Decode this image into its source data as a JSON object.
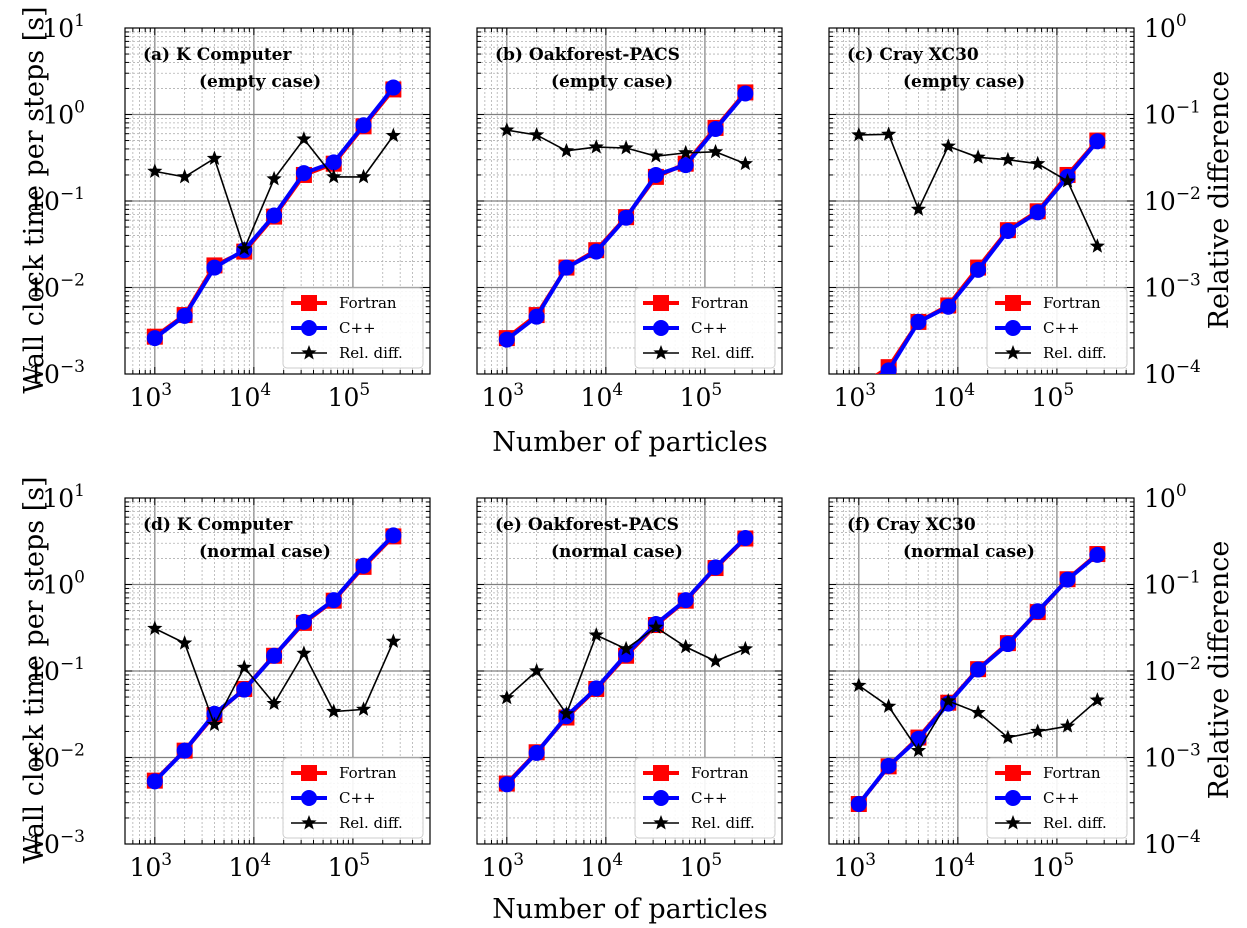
{
  "figure": {
    "ylabel_left": "Wall clock time per steps [s]",
    "ylabel_right": "Relative difference",
    "xlabel": "Number of particles"
  },
  "legend": {
    "entries": [
      "Fortran",
      "C++",
      "Rel. diff."
    ],
    "location": "lower-right"
  },
  "colors": {
    "fortran": "#ff0000",
    "cpp": "#0000ff",
    "reldiff": "#000000",
    "grid_major": "#808080",
    "grid_minor": "#b0b0b0"
  },
  "axes": {
    "x_ticks": [
      "10^3",
      "10^4",
      "10^5"
    ],
    "y_left_ticks": [
      "10^-3",
      "10^-2",
      "10^-1",
      "10^0",
      "10^1"
    ],
    "y_right_ticks": [
      "10^-4",
      "10^-3",
      "10^-2",
      "10^-1",
      "10^0"
    ]
  },
  "chart_data": [
    {
      "type": "line",
      "title": "(a) K Computer",
      "subtitle": "(empty case)",
      "xscale": "log",
      "yscale": "log",
      "y2scale": "log",
      "xlim": [
        500,
        600000
      ],
      "ylim": [
        0.001,
        10
      ],
      "y2lim": [
        0.0001,
        1
      ],
      "x": [
        1000,
        2000,
        4000,
        8000,
        16000,
        32000,
        64000,
        128000,
        256000
      ],
      "series": [
        {
          "name": "Fortran",
          "axis": "left",
          "values": [
            0.0027,
            0.0048,
            0.018,
            0.026,
            0.066,
            0.2,
            0.27,
            0.73,
            1.95
          ]
        },
        {
          "name": "C++",
          "axis": "left",
          "values": [
            0.0026,
            0.0047,
            0.017,
            0.027,
            0.068,
            0.21,
            0.28,
            0.75,
            2.05
          ]
        },
        {
          "name": "Rel. diff.",
          "axis": "right",
          "values": [
            0.022,
            0.019,
            0.031,
            0.0028,
            0.018,
            0.052,
            0.019,
            0.019,
            0.057
          ]
        }
      ]
    },
    {
      "type": "line",
      "title": "(b) Oakforest-PACS",
      "subtitle": "(empty case)",
      "xscale": "log",
      "yscale": "log",
      "y2scale": "log",
      "xlim": [
        500,
        600000
      ],
      "ylim": [
        0.001,
        10
      ],
      "y2lim": [
        0.0001,
        1
      ],
      "x": [
        1000,
        2000,
        4000,
        8000,
        16000,
        32000,
        64000,
        128000,
        256000
      ],
      "series": [
        {
          "name": "Fortran",
          "axis": "left",
          "values": [
            0.0026,
            0.0048,
            0.017,
            0.027,
            0.065,
            0.19,
            0.27,
            0.7,
            1.8
          ]
        },
        {
          "name": "C++",
          "axis": "left",
          "values": [
            0.0025,
            0.0046,
            0.017,
            0.026,
            0.064,
            0.2,
            0.26,
            0.68,
            1.75
          ]
        },
        {
          "name": "Rel. diff.",
          "axis": "right",
          "values": [
            0.066,
            0.058,
            0.038,
            0.042,
            0.041,
            0.033,
            0.036,
            0.037,
            0.027
          ]
        }
      ]
    },
    {
      "type": "line",
      "title": "(c) Cray XC30",
      "subtitle": "(empty case)",
      "xscale": "log",
      "yscale": "log",
      "y2scale": "log",
      "xlim": [
        500,
        600000
      ],
      "ylim": [
        0.001,
        10
      ],
      "y2lim": [
        0.0001,
        1
      ],
      "x": [
        1000,
        2000,
        4000,
        8000,
        16000,
        32000,
        64000,
        128000,
        256000
      ],
      "series": [
        {
          "name": "Fortran",
          "axis": "left",
          "values": [
            0.0007,
            0.0012,
            0.004,
            0.0062,
            0.017,
            0.046,
            0.076,
            0.2,
            0.5
          ]
        },
        {
          "name": "C++",
          "axis": "left",
          "values": [
            0.0007,
            0.0011,
            0.004,
            0.006,
            0.016,
            0.045,
            0.074,
            0.19,
            0.49
          ]
        },
        {
          "name": "Rel. diff.",
          "axis": "right",
          "values": [
            0.058,
            0.059,
            0.008,
            0.043,
            0.032,
            0.03,
            0.027,
            0.017,
            0.003
          ]
        }
      ]
    },
    {
      "type": "line",
      "title": "(d) K Computer",
      "subtitle": "(normal case)",
      "xscale": "log",
      "yscale": "log",
      "y2scale": "log",
      "xlim": [
        500,
        600000
      ],
      "ylim": [
        0.001,
        10
      ],
      "y2lim": [
        0.0001,
        1
      ],
      "x": [
        1000,
        2000,
        4000,
        8000,
        16000,
        32000,
        64000,
        128000,
        256000
      ],
      "series": [
        {
          "name": "Fortran",
          "axis": "left",
          "values": [
            0.0054,
            0.012,
            0.031,
            0.062,
            0.15,
            0.36,
            0.65,
            1.6,
            3.6
          ]
        },
        {
          "name": "C++",
          "axis": "left",
          "values": [
            0.0053,
            0.012,
            0.032,
            0.061,
            0.15,
            0.37,
            0.66,
            1.65,
            3.7
          ]
        },
        {
          "name": "Rel. diff.",
          "axis": "right",
          "values": [
            0.031,
            0.021,
            0.0024,
            0.011,
            0.0042,
            0.016,
            0.0034,
            0.0036,
            0.022
          ]
        }
      ]
    },
    {
      "type": "line",
      "title": "(e) Oakforest-PACS",
      "subtitle": "(normal case)",
      "xscale": "log",
      "yscale": "log",
      "y2scale": "log",
      "xlim": [
        500,
        600000
      ],
      "ylim": [
        0.001,
        10
      ],
      "y2lim": [
        0.0001,
        1
      ],
      "x": [
        1000,
        2000,
        4000,
        8000,
        16000,
        32000,
        64000,
        128000,
        256000
      ],
      "series": [
        {
          "name": "Fortran",
          "axis": "left",
          "values": [
            0.005,
            0.0115,
            0.029,
            0.062,
            0.15,
            0.34,
            0.65,
            1.55,
            3.4
          ]
        },
        {
          "name": "C++",
          "axis": "left",
          "values": [
            0.0049,
            0.0113,
            0.03,
            0.063,
            0.155,
            0.35,
            0.66,
            1.58,
            3.45
          ]
        },
        {
          "name": "Rel. diff.",
          "axis": "right",
          "values": [
            0.0049,
            0.01,
            0.0032,
            0.026,
            0.018,
            0.032,
            0.019,
            0.013,
            0.018
          ]
        }
      ]
    },
    {
      "type": "line",
      "title": "(f) Cray XC30",
      "subtitle": "(normal case)",
      "xscale": "log",
      "yscale": "log",
      "y2scale": "log",
      "xlim": [
        500,
        600000
      ],
      "ylim": [
        0.001,
        10
      ],
      "y2lim": [
        0.0001,
        1
      ],
      "x": [
        1000,
        2000,
        4000,
        8000,
        16000,
        32000,
        64000,
        128000,
        256000
      ],
      "series": [
        {
          "name": "Fortran",
          "axis": "left",
          "values": [
            0.0029,
            0.0079,
            0.017,
            0.043,
            0.105,
            0.21,
            0.48,
            1.15,
            2.25
          ]
        },
        {
          "name": "C++",
          "axis": "left",
          "values": [
            0.0029,
            0.008,
            0.0165,
            0.042,
            0.104,
            0.205,
            0.49,
            1.14,
            2.2
          ]
        },
        {
          "name": "Rel. diff.",
          "axis": "right",
          "values": [
            0.0068,
            0.0039,
            0.0012,
            0.0045,
            0.0033,
            0.0017,
            0.002,
            0.0023,
            0.0046
          ]
        }
      ]
    }
  ]
}
